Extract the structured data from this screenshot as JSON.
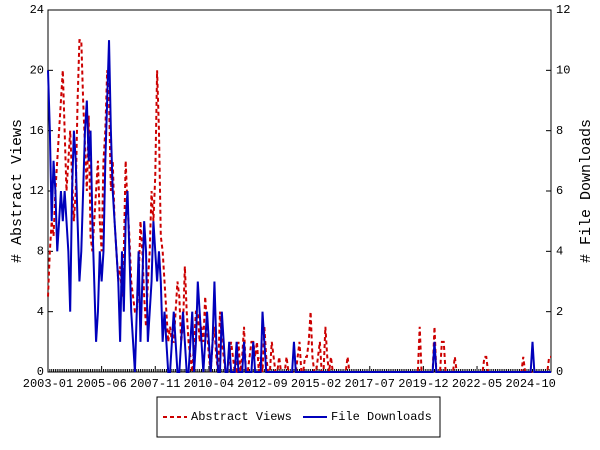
{
  "chart_data": {
    "type": "line",
    "y_label": "# Abstract Views",
    "y2_label": "# File Downloads",
    "ylim": [
      0,
      24
    ],
    "yticks": [
      0,
      4,
      8,
      12,
      16,
      20,
      24
    ],
    "y2lim": [
      0,
      12
    ],
    "y2ticks": [
      0,
      2,
      4,
      6,
      8,
      10,
      12
    ],
    "legend": "bottom",
    "categories": [
      "2003-01",
      null,
      null,
      null,
      null,
      null,
      null,
      null,
      null,
      null,
      null,
      null,
      null,
      null,
      null,
      null,
      null,
      null,
      null,
      null,
      null,
      null,
      null,
      null,
      null,
      null,
      null,
      null,
      null,
      "2005-06",
      null,
      null,
      null,
      null,
      null,
      null,
      null,
      null,
      null,
      null,
      null,
      null,
      null,
      null,
      null,
      null,
      null,
      null,
      null,
      null,
      null,
      null,
      null,
      null,
      null,
      null,
      null,
      null,
      "2007-11",
      null,
      null,
      null,
      null,
      null,
      null,
      null,
      null,
      null,
      null,
      null,
      null,
      null,
      null,
      null,
      null,
      null,
      null,
      null,
      null,
      null,
      null,
      null,
      null,
      null,
      null,
      null,
      null,
      "2010-04",
      null,
      null,
      null,
      null,
      null,
      null,
      null,
      null,
      null,
      null,
      null,
      null,
      null,
      null,
      null,
      null,
      null,
      null,
      null,
      null,
      null,
      null,
      null,
      null,
      null,
      null,
      null,
      null,
      "2012-09",
      null,
      null,
      null,
      null,
      null,
      null,
      null,
      null,
      null,
      null,
      null,
      null,
      null,
      null,
      null,
      null,
      null,
      null,
      null,
      null,
      null,
      null,
      null,
      null,
      null,
      null,
      null,
      null,
      "2015-02",
      null,
      null,
      null,
      null,
      null,
      null,
      null,
      null,
      null,
      null,
      null,
      null,
      null,
      null,
      null,
      null,
      null,
      null,
      null,
      null,
      null,
      null,
      null,
      null,
      null,
      null,
      null,
      null,
      "2017-07",
      null,
      null,
      null,
      null,
      null,
      null,
      null,
      null,
      null,
      null,
      null,
      null,
      null,
      null,
      null,
      null,
      null,
      null,
      null,
      null,
      null,
      null,
      null,
      null,
      null,
      null,
      null,
      null,
      "2019-12",
      null,
      null,
      null,
      null,
      null,
      null,
      null,
      null,
      null,
      null,
      null,
      null,
      null,
      null,
      null,
      null,
      null,
      null,
      null,
      null,
      null,
      null,
      null,
      null,
      null,
      null,
      null,
      null,
      "2022-05",
      null,
      null,
      null,
      null,
      null,
      null,
      null,
      null,
      null,
      null,
      null,
      null,
      null,
      null,
      null,
      null,
      null,
      null,
      null,
      null,
      null,
      null,
      null,
      null,
      null,
      null,
      null,
      null,
      "2024-10",
      null,
      null,
      null,
      null,
      null,
      null,
      null,
      null,
      null,
      null,
      null
    ],
    "series": [
      {
        "name": "Abstract Views",
        "color": "#cc0000",
        "line_style": "dashed",
        "axis": "y",
        "values": [
          5,
          8,
          10,
          9,
          12,
          14,
          16,
          18,
          20,
          16,
          12,
          14,
          16,
          13,
          10,
          12,
          18,
          22,
          22,
          18,
          15,
          12,
          17,
          9,
          8,
          10,
          12,
          14,
          10,
          8,
          14,
          16,
          20,
          18,
          12,
          14,
          10,
          8,
          6,
          7,
          5,
          8,
          14,
          11,
          9,
          6,
          5,
          4,
          4,
          6,
          10,
          8,
          5,
          3,
          6,
          8,
          12,
          10,
          13,
          20,
          16,
          9,
          8,
          6,
          4,
          2,
          3,
          2,
          2,
          4,
          6,
          5,
          2,
          3,
          7,
          4,
          2,
          1,
          0,
          2,
          4,
          4,
          2,
          3,
          2,
          5,
          3,
          1,
          0,
          2,
          3,
          1,
          0,
          4,
          2,
          1,
          0,
          0,
          1,
          2,
          1,
          0,
          0,
          2,
          0,
          1,
          3,
          0,
          0,
          1,
          2,
          2,
          1,
          2,
          0,
          1,
          0,
          3,
          1,
          0,
          0,
          2,
          1,
          0,
          0,
          1,
          0,
          0,
          0,
          1,
          0,
          0,
          0,
          0,
          0,
          1,
          2,
          0,
          0,
          1,
          1,
          2,
          4,
          1,
          0,
          0,
          1,
          2,
          0,
          0,
          3,
          1,
          0,
          1,
          0,
          0,
          0,
          0,
          0,
          0,
          0,
          0,
          1,
          0,
          0,
          0,
          0,
          0,
          0,
          0,
          0,
          0,
          0,
          0,
          0,
          0,
          0,
          0,
          0,
          0,
          0,
          0,
          0,
          0,
          0,
          0,
          0,
          0,
          0,
          0,
          0,
          0,
          0,
          0,
          0,
          0,
          0,
          0,
          0,
          0,
          0,
          3,
          0,
          0,
          0,
          0,
          0,
          0,
          0,
          3,
          0,
          0,
          0,
          2,
          2,
          0,
          0,
          0,
          0,
          0,
          1,
          0,
          0,
          0,
          0,
          0,
          0,
          0,
          0,
          0,
          0,
          0,
          0,
          0,
          0,
          0,
          1,
          1,
          0,
          0,
          0,
          0,
          0,
          0,
          0,
          0,
          0,
          0,
          0,
          0,
          0,
          0,
          0,
          0,
          0,
          0,
          0,
          1,
          0,
          0,
          0,
          0,
          0,
          0,
          0,
          0,
          0,
          0,
          0,
          0,
          0,
          1,
          1
        ]
      },
      {
        "name": "File Downloads",
        "color": "#0000bb",
        "line_style": "solid",
        "axis": "y2",
        "values": [
          10,
          8,
          5,
          7,
          6,
          4,
          5,
          6,
          5,
          6,
          5,
          4,
          2,
          6,
          8,
          7,
          5,
          3,
          4,
          6,
          8,
          9,
          7,
          8,
          5,
          3,
          1,
          2,
          4,
          3,
          4,
          7,
          9,
          11,
          8,
          6,
          5,
          4,
          3,
          1,
          4,
          2,
          5,
          6,
          4,
          2,
          1,
          0,
          2,
          4,
          1,
          3,
          5,
          4,
          1,
          2,
          3,
          5,
          4,
          3,
          4,
          3,
          1,
          2,
          1,
          0,
          0,
          1,
          2,
          1,
          0,
          0,
          1,
          2,
          1,
          0,
          0,
          1,
          2,
          0,
          1,
          3,
          2,
          1,
          0,
          1,
          2,
          1,
          0,
          1,
          3,
          1,
          0,
          0,
          2,
          1,
          0,
          0,
          1,
          0,
          0,
          0,
          1,
          0,
          0,
          0,
          1,
          0,
          0,
          0,
          0,
          1,
          0,
          0,
          0,
          0,
          2,
          1,
          0,
          0,
          0,
          0,
          0,
          0,
          0,
          0,
          0,
          0,
          0,
          0,
          0,
          0,
          0,
          1,
          0,
          0,
          0,
          0,
          0,
          0,
          0,
          0,
          0,
          0,
          0,
          0,
          0,
          0,
          0,
          0,
          0,
          0,
          0,
          0,
          0,
          0,
          0,
          0,
          0,
          0,
          0,
          0,
          0,
          0,
          0,
          0,
          0,
          0,
          0,
          0,
          0,
          0,
          0,
          0,
          0,
          0,
          0,
          0,
          0,
          0,
          0,
          0,
          0,
          0,
          0,
          0,
          0,
          0,
          0,
          0,
          0,
          0,
          0,
          0,
          0,
          0,
          0,
          0,
          0,
          0,
          0,
          0,
          0,
          0,
          0,
          0,
          0,
          0,
          0,
          1,
          0,
          0,
          0,
          0,
          0,
          0,
          0,
          0,
          0,
          0,
          0,
          0,
          0,
          0,
          0,
          0,
          0,
          0,
          0,
          0,
          0,
          0,
          0,
          0,
          0,
          0,
          0,
          0,
          0,
          0,
          0,
          0,
          0,
          0,
          0,
          0,
          0,
          0,
          0,
          0,
          0,
          0,
          0,
          0,
          0,
          0,
          0,
          0,
          0,
          0,
          0,
          0,
          1,
          0,
          0,
          0,
          0,
          0,
          0,
          0,
          0,
          0,
          0
        ]
      }
    ]
  }
}
